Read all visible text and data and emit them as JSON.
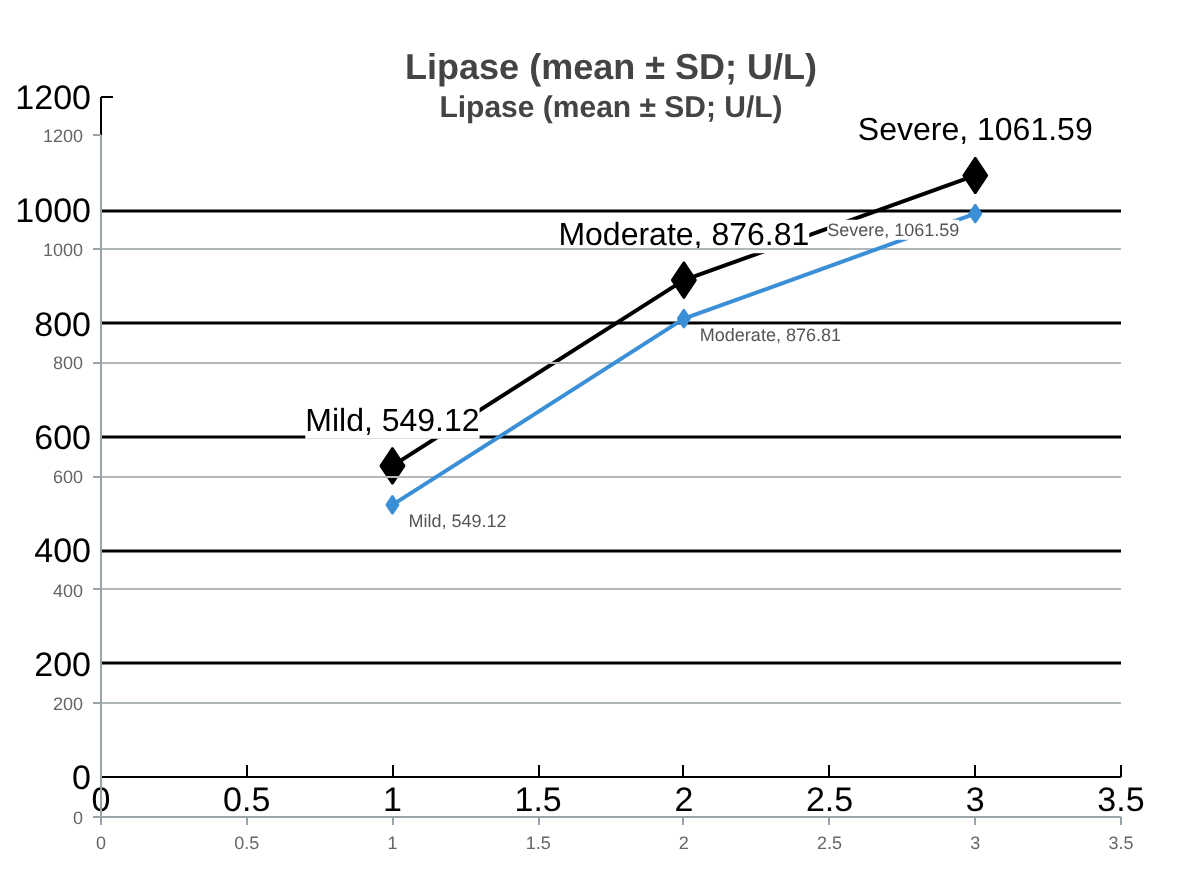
{
  "chart_data": [
    {
      "type": "line",
      "title": "Lipase (mean ± SD; U/L)",
      "x": [
        1,
        2,
        3
      ],
      "xlim": [
        0,
        3.5
      ],
      "xticks": [
        0,
        0.5,
        1,
        1.5,
        2,
        2.5,
        3,
        3.5
      ],
      "ylim": [
        0,
        1200
      ],
      "yticks": [
        0,
        200,
        400,
        600,
        800,
        1000,
        1200
      ],
      "grid": "y",
      "marker": "diamond",
      "series": [
        {
          "color": "#000000",
          "values": [
            549.12,
            876.81,
            1061.59
          ],
          "value_labels": [
            "Mild, 549.12",
            "Moderate, 876.81",
            "Severe, 1061.59"
          ]
        }
      ]
    },
    {
      "type": "line",
      "title": "Lipase (mean ± SD; U/L)",
      "x": [
        1,
        2,
        3
      ],
      "xlim": [
        0,
        3.5
      ],
      "xticks": [
        0,
        0.5,
        1,
        1.5,
        2,
        2.5,
        3,
        3.5
      ],
      "ylim": [
        0,
        1200
      ],
      "yticks": [
        0,
        200,
        400,
        600,
        800,
        1000,
        1200
      ],
      "grid": "y",
      "marker": "diamond",
      "series": [
        {
          "color": "#3a8fd6",
          "values": [
            549.12,
            876.81,
            1061.59
          ],
          "value_labels": [
            "Mild, 549.12",
            "Moderate, 876.81",
            "Severe, 1061.59"
          ]
        }
      ]
    }
  ]
}
